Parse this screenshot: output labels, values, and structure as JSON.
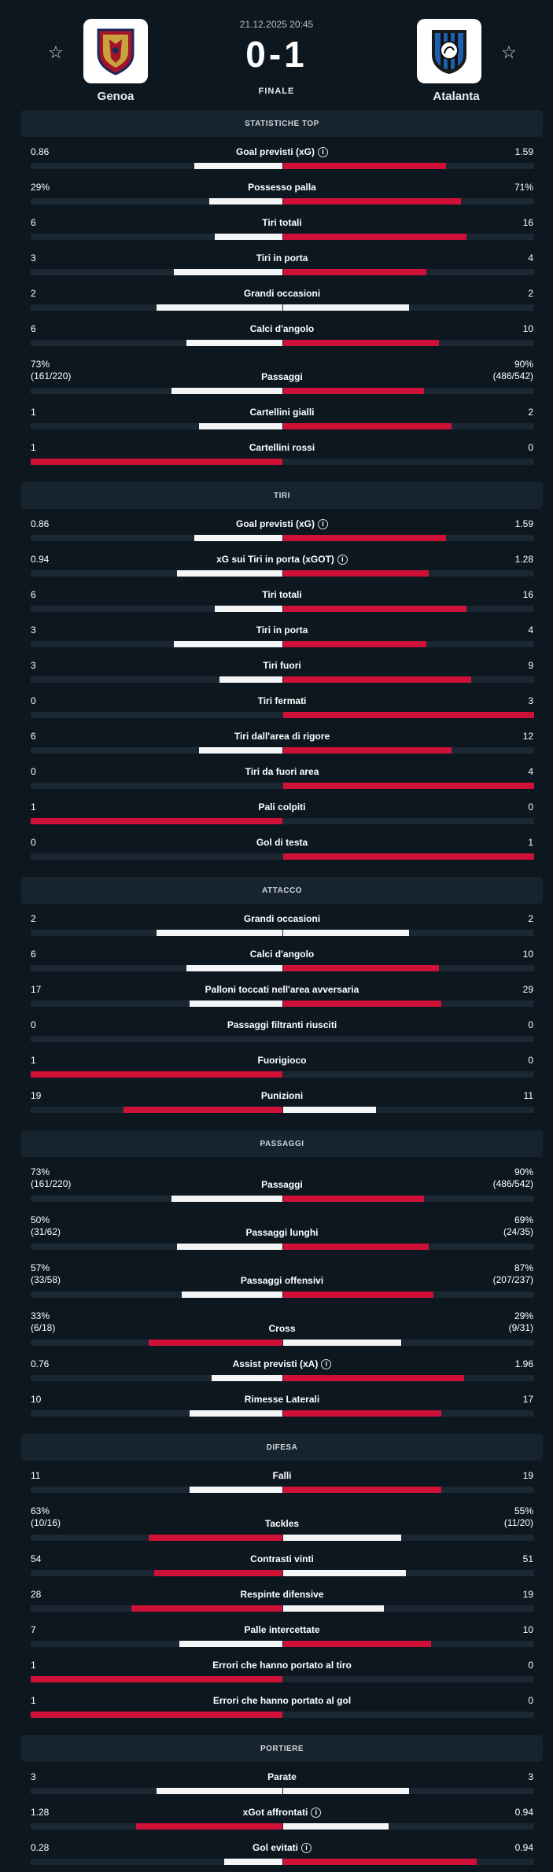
{
  "match": {
    "datetime": "21.12.2025 20:45",
    "score": "0-1",
    "status": "FINALE",
    "home_team": "Genoa",
    "away_team": "Atalanta",
    "colors": {
      "background": "#0c1720",
      "winner_bar": "#cf1138",
      "loser_bar": "#f3f5f7"
    }
  },
  "sections": [
    {
      "title": "STATISTICHE TOP",
      "stats": [
        {
          "label": "Goal previsti (xG)",
          "info": true,
          "home": "0.86",
          "away": "1.59",
          "home_share": 0.35,
          "away_share": 0.65,
          "winner": "away"
        },
        {
          "label": "Possesso palla",
          "home": "29%",
          "away": "71%",
          "home_share": 0.29,
          "away_share": 0.71,
          "winner": "away"
        },
        {
          "label": "Tiri totali",
          "home": "6",
          "away": "16",
          "home_share": 0.27,
          "away_share": 0.73,
          "winner": "away"
        },
        {
          "label": "Tiri in porta",
          "home": "3",
          "away": "4",
          "home_share": 0.43,
          "away_share": 0.57,
          "winner": "away"
        },
        {
          "label": "Grandi occasioni",
          "home": "2",
          "away": "2",
          "home_share": 0.5,
          "away_share": 0.5,
          "winner": "none"
        },
        {
          "label": "Calci d'angolo",
          "home": "6",
          "away": "10",
          "home_share": 0.38,
          "away_share": 0.62,
          "winner": "away"
        },
        {
          "label": "Passaggi",
          "home": "73%",
          "home_sub": "(161/220)",
          "away": "90%",
          "away_sub": "(486/542)",
          "home_share": 0.44,
          "away_share": 0.56,
          "winner": "away"
        },
        {
          "label": "Cartellini gialli",
          "home": "1",
          "away": "2",
          "home_share": 0.33,
          "away_share": 0.67,
          "winner": "away"
        },
        {
          "label": "Cartellini rossi",
          "home": "1",
          "away": "0",
          "home_share": 1.0,
          "away_share": 0.0,
          "winner": "home"
        }
      ]
    },
    {
      "title": "TIRI",
      "stats": [
        {
          "label": "Goal previsti (xG)",
          "info": true,
          "home": "0.86",
          "away": "1.59",
          "home_share": 0.35,
          "away_share": 0.65,
          "winner": "away"
        },
        {
          "label": "xG sui Tiri in porta (xGOT)",
          "info": true,
          "home": "0.94",
          "away": "1.28",
          "home_share": 0.42,
          "away_share": 0.58,
          "winner": "away"
        },
        {
          "label": "Tiri totali",
          "home": "6",
          "away": "16",
          "home_share": 0.27,
          "away_share": 0.73,
          "winner": "away"
        },
        {
          "label": "Tiri in porta",
          "home": "3",
          "away": "4",
          "home_share": 0.43,
          "away_share": 0.57,
          "winner": "away"
        },
        {
          "label": "Tiri fuori",
          "home": "3",
          "away": "9",
          "home_share": 0.25,
          "away_share": 0.75,
          "winner": "away"
        },
        {
          "label": "Tiri fermati",
          "home": "0",
          "away": "3",
          "home_share": 0.0,
          "away_share": 1.0,
          "winner": "away"
        },
        {
          "label": "Tiri dall'area di rigore",
          "home": "6",
          "away": "12",
          "home_share": 0.33,
          "away_share": 0.67,
          "winner": "away"
        },
        {
          "label": "Tiri da fuori area",
          "home": "0",
          "away": "4",
          "home_share": 0.0,
          "away_share": 1.0,
          "winner": "away"
        },
        {
          "label": "Pali colpiti",
          "home": "1",
          "away": "0",
          "home_share": 1.0,
          "away_share": 0.0,
          "winner": "home"
        },
        {
          "label": "Gol di testa",
          "home": "0",
          "away": "1",
          "home_share": 0.0,
          "away_share": 1.0,
          "winner": "away"
        }
      ]
    },
    {
      "title": "ATTACCO",
      "stats": [
        {
          "label": "Grandi occasioni",
          "home": "2",
          "away": "2",
          "home_share": 0.5,
          "away_share": 0.5,
          "winner": "none"
        },
        {
          "label": "Calci d'angolo",
          "home": "6",
          "away": "10",
          "home_share": 0.38,
          "away_share": 0.62,
          "winner": "away"
        },
        {
          "label": "Palloni toccati nell'area avversaria",
          "home": "17",
          "away": "29",
          "home_share": 0.37,
          "away_share": 0.63,
          "winner": "away"
        },
        {
          "label": "Passaggi filtranti riusciti",
          "home": "0",
          "away": "0",
          "home_share": 0.0,
          "away_share": 0.0,
          "winner": "none"
        },
        {
          "label": "Fuorigioco",
          "home": "1",
          "away": "0",
          "home_share": 1.0,
          "away_share": 0.0,
          "winner": "home"
        },
        {
          "label": "Punizioni",
          "home": "19",
          "away": "11",
          "home_share": 0.63,
          "away_share": 0.37,
          "winner": "home"
        }
      ]
    },
    {
      "title": "PASSAGGI",
      "stats": [
        {
          "label": "Passaggi",
          "home": "73%",
          "home_sub": "(161/220)",
          "away": "90%",
          "away_sub": "(486/542)",
          "home_share": 0.44,
          "away_share": 0.56,
          "winner": "away"
        },
        {
          "label": "Passaggi lunghi",
          "home": "50%",
          "home_sub": "(31/62)",
          "away": "69%",
          "away_sub": "(24/35)",
          "home_share": 0.42,
          "away_share": 0.58,
          "winner": "away"
        },
        {
          "label": "Passaggi offensivi",
          "home": "57%",
          "home_sub": "(33/58)",
          "away": "87%",
          "away_sub": "(207/237)",
          "home_share": 0.4,
          "away_share": 0.6,
          "winner": "away"
        },
        {
          "label": "Cross",
          "home": "33%",
          "home_sub": "(6/18)",
          "away": "29%",
          "away_sub": "(9/31)",
          "home_share": 0.53,
          "away_share": 0.47,
          "winner": "home"
        },
        {
          "label": "Assist previsti (xA)",
          "info": true,
          "home": "0.76",
          "away": "1.96",
          "home_share": 0.28,
          "away_share": 0.72,
          "winner": "away"
        },
        {
          "label": "Rimesse Laterali",
          "home": "10",
          "away": "17",
          "home_share": 0.37,
          "away_share": 0.63,
          "winner": "away"
        }
      ]
    },
    {
      "title": "DIFESA",
      "stats": [
        {
          "label": "Falli",
          "home": "11",
          "away": "19",
          "home_share": 0.37,
          "away_share": 0.63,
          "winner": "away"
        },
        {
          "label": "Tackles",
          "home": "63%",
          "home_sub": "(10/16)",
          "away": "55%",
          "away_sub": "(11/20)",
          "home_share": 0.53,
          "away_share": 0.47,
          "winner": "home"
        },
        {
          "label": "Contrasti vinti",
          "home": "54",
          "away": "51",
          "home_share": 0.51,
          "away_share": 0.49,
          "winner": "home"
        },
        {
          "label": "Respinte difensive",
          "home": "28",
          "away": "19",
          "home_share": 0.6,
          "away_share": 0.4,
          "winner": "home"
        },
        {
          "label": "Palle intercettate",
          "home": "7",
          "away": "10",
          "home_share": 0.41,
          "away_share": 0.59,
          "winner": "away"
        },
        {
          "label": "Errori che hanno portato al tiro",
          "home": "1",
          "away": "0",
          "home_share": 1.0,
          "away_share": 0.0,
          "winner": "home"
        },
        {
          "label": "Errori che hanno portato al gol",
          "home": "1",
          "away": "0",
          "home_share": 1.0,
          "away_share": 0.0,
          "winner": "home"
        }
      ]
    },
    {
      "title": "PORTIERE",
      "stats": [
        {
          "label": "Parate",
          "home": "3",
          "away": "3",
          "home_share": 0.5,
          "away_share": 0.5,
          "winner": "none"
        },
        {
          "label": "xGot affrontati",
          "info": true,
          "home": "1.28",
          "away": "0.94",
          "home_share": 0.58,
          "away_share": 0.42,
          "winner": "home"
        },
        {
          "label": "Gol evitati",
          "info": true,
          "home": "0.28",
          "away": "0.94",
          "home_share": 0.23,
          "away_share": 0.77,
          "winner": "away"
        }
      ]
    }
  ]
}
